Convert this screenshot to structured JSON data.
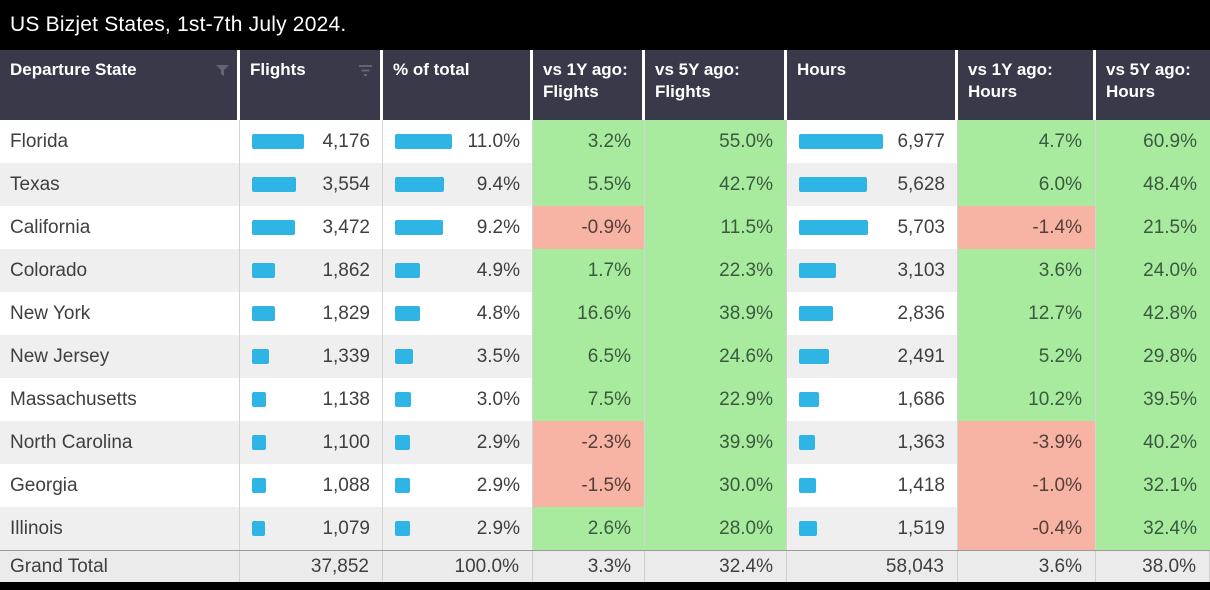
{
  "title": "US Bizjet States, 1st-7th July 2024.",
  "colors": {
    "bar": "#2fb4e6",
    "positive_bg": "#a8eb9f",
    "negative_bg": "#f7b3a3",
    "positive_text": "#3a5a3e",
    "negative_text": "#553f3a",
    "header_bg": "#39394a"
  },
  "chart_data": {
    "type": "table",
    "title": "US Bizjet States, 1st-7th July 2024.",
    "columns": [
      "Departure State",
      "Flights",
      "% of total",
      "vs 1Y ago: Flights",
      "vs 5Y ago: Flights",
      "Hours",
      "vs 1Y ago: Hours",
      "vs 5Y ago: Hours"
    ],
    "rows": [
      {
        "state": "Florida",
        "flights": 4176,
        "flights_label": "4,176",
        "pct": 11.0,
        "pct_label": "11.0%",
        "vs1y_flights": 3.2,
        "vs1y_flights_label": "3.2%",
        "vs5y_flights": 55.0,
        "vs5y_flights_label": "55.0%",
        "hours": 6977,
        "hours_label": "6,977",
        "vs1y_hours": 4.7,
        "vs1y_hours_label": "4.7%",
        "vs5y_hours": 60.9,
        "vs5y_hours_label": "60.9%"
      },
      {
        "state": "Texas",
        "flights": 3554,
        "flights_label": "3,554",
        "pct": 9.4,
        "pct_label": "9.4%",
        "vs1y_flights": 5.5,
        "vs1y_flights_label": "5.5%",
        "vs5y_flights": 42.7,
        "vs5y_flights_label": "42.7%",
        "hours": 5628,
        "hours_label": "5,628",
        "vs1y_hours": 6.0,
        "vs1y_hours_label": "6.0%",
        "vs5y_hours": 48.4,
        "vs5y_hours_label": "48.4%"
      },
      {
        "state": "California",
        "flights": 3472,
        "flights_label": "3,472",
        "pct": 9.2,
        "pct_label": "9.2%",
        "vs1y_flights": -0.9,
        "vs1y_flights_label": "-0.9%",
        "vs5y_flights": 11.5,
        "vs5y_flights_label": "11.5%",
        "hours": 5703,
        "hours_label": "5,703",
        "vs1y_hours": -1.4,
        "vs1y_hours_label": "-1.4%",
        "vs5y_hours": 21.5,
        "vs5y_hours_label": "21.5%"
      },
      {
        "state": "Colorado",
        "flights": 1862,
        "flights_label": "1,862",
        "pct": 4.9,
        "pct_label": "4.9%",
        "vs1y_flights": 1.7,
        "vs1y_flights_label": "1.7%",
        "vs5y_flights": 22.3,
        "vs5y_flights_label": "22.3%",
        "hours": 3103,
        "hours_label": "3,103",
        "vs1y_hours": 3.6,
        "vs1y_hours_label": "3.6%",
        "vs5y_hours": 24.0,
        "vs5y_hours_label": "24.0%"
      },
      {
        "state": "New York",
        "flights": 1829,
        "flights_label": "1,829",
        "pct": 4.8,
        "pct_label": "4.8%",
        "vs1y_flights": 16.6,
        "vs1y_flights_label": "16.6%",
        "vs5y_flights": 38.9,
        "vs5y_flights_label": "38.9%",
        "hours": 2836,
        "hours_label": "2,836",
        "vs1y_hours": 12.7,
        "vs1y_hours_label": "12.7%",
        "vs5y_hours": 42.8,
        "vs5y_hours_label": "42.8%"
      },
      {
        "state": "New Jersey",
        "flights": 1339,
        "flights_label": "1,339",
        "pct": 3.5,
        "pct_label": "3.5%",
        "vs1y_flights": 6.5,
        "vs1y_flights_label": "6.5%",
        "vs5y_flights": 24.6,
        "vs5y_flights_label": "24.6%",
        "hours": 2491,
        "hours_label": "2,491",
        "vs1y_hours": 5.2,
        "vs1y_hours_label": "5.2%",
        "vs5y_hours": 29.8,
        "vs5y_hours_label": "29.8%"
      },
      {
        "state": "Massachusetts",
        "flights": 1138,
        "flights_label": "1,138",
        "pct": 3.0,
        "pct_label": "3.0%",
        "vs1y_flights": 7.5,
        "vs1y_flights_label": "7.5%",
        "vs5y_flights": 22.9,
        "vs5y_flights_label": "22.9%",
        "hours": 1686,
        "hours_label": "1,686",
        "vs1y_hours": 10.2,
        "vs1y_hours_label": "10.2%",
        "vs5y_hours": 39.5,
        "vs5y_hours_label": "39.5%"
      },
      {
        "state": "North Carolina",
        "flights": 1100,
        "flights_label": "1,100",
        "pct": 2.9,
        "pct_label": "2.9%",
        "vs1y_flights": -2.3,
        "vs1y_flights_label": "-2.3%",
        "vs5y_flights": 39.9,
        "vs5y_flights_label": "39.9%",
        "hours": 1363,
        "hours_label": "1,363",
        "vs1y_hours": -3.9,
        "vs1y_hours_label": "-3.9%",
        "vs5y_hours": 40.2,
        "vs5y_hours_label": "40.2%"
      },
      {
        "state": "Georgia",
        "flights": 1088,
        "flights_label": "1,088",
        "pct": 2.9,
        "pct_label": "2.9%",
        "vs1y_flights": -1.5,
        "vs1y_flights_label": "-1.5%",
        "vs5y_flights": 30.0,
        "vs5y_flights_label": "30.0%",
        "hours": 1418,
        "hours_label": "1,418",
        "vs1y_hours": -1.0,
        "vs1y_hours_label": "-1.0%",
        "vs5y_hours": 32.1,
        "vs5y_hours_label": "32.1%"
      },
      {
        "state": "Illinois",
        "flights": 1079,
        "flights_label": "1,079",
        "pct": 2.9,
        "pct_label": "2.9%",
        "vs1y_flights": 2.6,
        "vs1y_flights_label": "2.6%",
        "vs5y_flights": 28.0,
        "vs5y_flights_label": "28.0%",
        "hours": 1519,
        "hours_label": "1,519",
        "vs1y_hours": -0.4,
        "vs1y_hours_label": "-0.4%",
        "vs5y_hours": 32.4,
        "vs5y_hours_label": "32.4%"
      }
    ],
    "grand_total": {
      "state": "Grand Total",
      "flights_label": "37,852",
      "pct_label": "100.0%",
      "vs1y_flights_label": "3.3%",
      "vs5y_flights_label": "32.4%",
      "hours_label": "58,043",
      "vs1y_hours_label": "3.6%",
      "vs5y_hours_label": "38.0%"
    }
  }
}
